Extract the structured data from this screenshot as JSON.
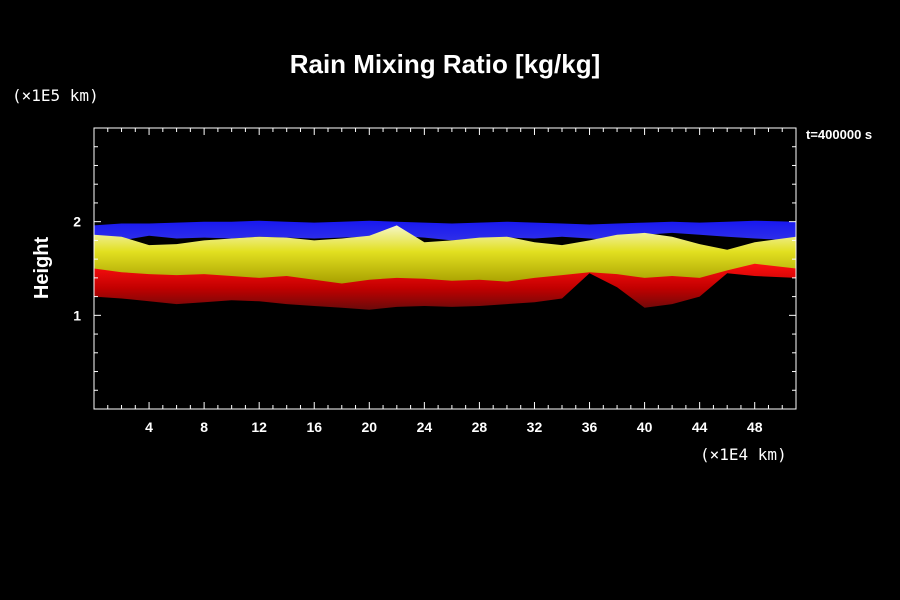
{
  "chart_data": {
    "type": "area",
    "title": "Rain Mixing Ratio [kg/kg]",
    "ylabel": "Height",
    "xlabel": "",
    "y_scale_label": "(×1E5 km)",
    "x_scale_label": "(×1E4 km)",
    "time_label": "t=400000 s",
    "xlim": [
      0,
      51
    ],
    "ylim": [
      0,
      3
    ],
    "x_ticks": [
      4,
      8,
      12,
      16,
      20,
      24,
      28,
      32,
      36,
      40,
      44,
      48
    ],
    "x_tick_labels": [
      "4",
      "8",
      "12",
      "16",
      "20",
      "24",
      "28",
      "32",
      "36",
      "40",
      "44",
      "48"
    ],
    "y_ticks": [
      1,
      2
    ],
    "y_tick_labels": [
      "1",
      "2"
    ],
    "colors": {
      "background": "#000000",
      "frame": "#ffffff",
      "text": "#ffffff",
      "upper": "#1010e0",
      "upper_light": "#4848ff",
      "middle": "#e0e000",
      "middle_light": "#f4f4b0",
      "lower": "#e00000",
      "lower_dark": "#9a0808",
      "accent_green": "#30c040",
      "accent_cyan": "#30e0a0"
    },
    "series": [
      {
        "band": "upper",
        "x": [
          0,
          2,
          4,
          6,
          8,
          10,
          12,
          14,
          16,
          18,
          20,
          22,
          24,
          26,
          28,
          30,
          32,
          34,
          36,
          38,
          40,
          42,
          44,
          46,
          48,
          51
        ],
        "y_bottom": [
          1.78,
          1.8,
          1.85,
          1.82,
          1.83,
          1.82,
          1.84,
          1.83,
          1.82,
          1.83,
          1.84,
          1.85,
          1.83,
          1.8,
          1.82,
          1.83,
          1.82,
          1.84,
          1.82,
          1.8,
          1.86,
          1.88,
          1.86,
          1.84,
          1.82,
          1.8
        ],
        "y_top": [
          1.96,
          1.98,
          1.98,
          1.99,
          2.0,
          2.0,
          2.01,
          2.0,
          1.99,
          2.0,
          2.01,
          2.0,
          1.99,
          1.98,
          1.99,
          2.0,
          1.99,
          1.98,
          1.97,
          1.98,
          1.99,
          2.0,
          1.99,
          2.0,
          2.01,
          2.0
        ]
      },
      {
        "band": "middle",
        "x": [
          0,
          2,
          4,
          6,
          8,
          10,
          12,
          14,
          16,
          18,
          20,
          22,
          24,
          26,
          28,
          30,
          32,
          34,
          36,
          38,
          40,
          42,
          44,
          46,
          48,
          51
        ],
        "y_bottom": [
          1.5,
          1.46,
          1.44,
          1.43,
          1.44,
          1.42,
          1.4,
          1.42,
          1.38,
          1.34,
          1.38,
          1.4,
          1.39,
          1.37,
          1.38,
          1.36,
          1.4,
          1.43,
          1.46,
          1.44,
          1.4,
          1.42,
          1.4,
          1.48,
          1.55,
          1.5
        ],
        "y_top": [
          1.86,
          1.84,
          1.75,
          1.76,
          1.8,
          1.82,
          1.84,
          1.83,
          1.8,
          1.82,
          1.85,
          1.96,
          1.78,
          1.8,
          1.83,
          1.84,
          1.78,
          1.75,
          1.8,
          1.86,
          1.88,
          1.84,
          1.76,
          1.7,
          1.78,
          1.84
        ]
      },
      {
        "band": "lower",
        "x": [
          0,
          2,
          4,
          6,
          8,
          10,
          12,
          14,
          16,
          18,
          20,
          22,
          24,
          26,
          28,
          30,
          32,
          34,
          36,
          38,
          40,
          42,
          44,
          46,
          48,
          51
        ],
        "y_bottom": [
          1.2,
          1.18,
          1.15,
          1.12,
          1.14,
          1.16,
          1.15,
          1.12,
          1.1,
          1.08,
          1.06,
          1.09,
          1.1,
          1.09,
          1.1,
          1.12,
          1.14,
          1.18,
          1.45,
          1.3,
          1.08,
          1.12,
          1.2,
          1.45,
          1.42,
          1.4
        ],
        "y_top": [
          1.52,
          1.48,
          1.46,
          1.45,
          1.46,
          1.44,
          1.42,
          1.44,
          1.4,
          1.36,
          1.4,
          1.42,
          1.41,
          1.39,
          1.4,
          1.38,
          1.42,
          1.45,
          1.47,
          1.46,
          1.42,
          1.44,
          1.42,
          1.5,
          1.56,
          1.52
        ]
      }
    ]
  }
}
